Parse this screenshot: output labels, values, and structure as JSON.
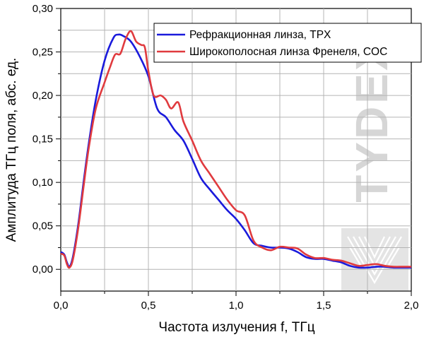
{
  "chart_data": {
    "type": "line",
    "xlabel": "Частота излучения f, ТГц",
    "ylabel": "Амплитуда ТГц поля, абс. ед.",
    "xlim": [
      0,
      2.0
    ],
    "ylim": [
      -0.025,
      0.3
    ],
    "xticks": [
      0.0,
      0.5,
      1.0,
      1.5,
      2.0
    ],
    "xtick_labels": [
      "0,0",
      "0,5",
      "1,0",
      "1,5",
      "2,0"
    ],
    "yticks": [
      0.0,
      0.05,
      0.1,
      0.15,
      0.2,
      0.25,
      0.3
    ],
    "ytick_labels": [
      "0,00",
      "0,05",
      "0,10",
      "0,15",
      "0,20",
      "0,25",
      "0,30"
    ],
    "grid": true,
    "legend": "top-right",
    "series": [
      {
        "name": "Рефракционная линза, TPX",
        "color": "#1a1adc",
        "x": [
          0.0,
          0.02,
          0.035,
          0.05,
          0.07,
          0.1,
          0.13,
          0.16,
          0.2,
          0.25,
          0.3,
          0.33,
          0.36,
          0.4,
          0.45,
          0.5,
          0.55,
          0.6,
          0.65,
          0.7,
          0.75,
          0.8,
          0.85,
          0.9,
          0.95,
          1.0,
          1.05,
          1.1,
          1.15,
          1.2,
          1.25,
          1.3,
          1.35,
          1.4,
          1.45,
          1.5,
          1.55,
          1.6,
          1.65,
          1.7,
          1.75,
          1.8,
          1.85,
          1.9,
          1.95,
          2.0
        ],
        "y": [
          0.02,
          0.017,
          0.008,
          0.003,
          0.015,
          0.052,
          0.1,
          0.145,
          0.195,
          0.24,
          0.266,
          0.27,
          0.268,
          0.262,
          0.245,
          0.222,
          0.185,
          0.175,
          0.16,
          0.148,
          0.127,
          0.105,
          0.092,
          0.08,
          0.068,
          0.058,
          0.045,
          0.03,
          0.027,
          0.025,
          0.025,
          0.024,
          0.02,
          0.014,
          0.012,
          0.012,
          0.01,
          0.008,
          0.004,
          0.002,
          0.002,
          0.003,
          0.003,
          0.002,
          0.002,
          0.002
        ]
      },
      {
        "name": "Широкополосная линза Френеля, COC",
        "color": "#e03a3e",
        "x": [
          0.0,
          0.02,
          0.035,
          0.05,
          0.07,
          0.1,
          0.13,
          0.16,
          0.2,
          0.25,
          0.28,
          0.31,
          0.34,
          0.37,
          0.4,
          0.43,
          0.46,
          0.48,
          0.5,
          0.53,
          0.57,
          0.6,
          0.63,
          0.67,
          0.7,
          0.75,
          0.8,
          0.85,
          0.9,
          0.95,
          1.0,
          1.05,
          1.1,
          1.15,
          1.2,
          1.25,
          1.3,
          1.35,
          1.4,
          1.45,
          1.5,
          1.55,
          1.6,
          1.65,
          1.7,
          1.75,
          1.8,
          1.85,
          1.9,
          1.95,
          2.0
        ],
        "y": [
          0.018,
          0.016,
          0.006,
          0.002,
          0.012,
          0.048,
          0.095,
          0.14,
          0.185,
          0.215,
          0.232,
          0.247,
          0.248,
          0.265,
          0.274,
          0.262,
          0.258,
          0.255,
          0.228,
          0.2,
          0.2,
          0.195,
          0.185,
          0.192,
          0.17,
          0.148,
          0.125,
          0.11,
          0.095,
          0.08,
          0.068,
          0.062,
          0.033,
          0.025,
          0.022,
          0.026,
          0.025,
          0.024,
          0.017,
          0.013,
          0.013,
          0.011,
          0.01,
          0.007,
          0.004,
          0.005,
          0.006,
          0.004,
          0.003,
          0.003,
          0.003
        ]
      }
    ]
  },
  "watermark": {
    "text": "TYDEX",
    "color": "#d6d6d6"
  }
}
